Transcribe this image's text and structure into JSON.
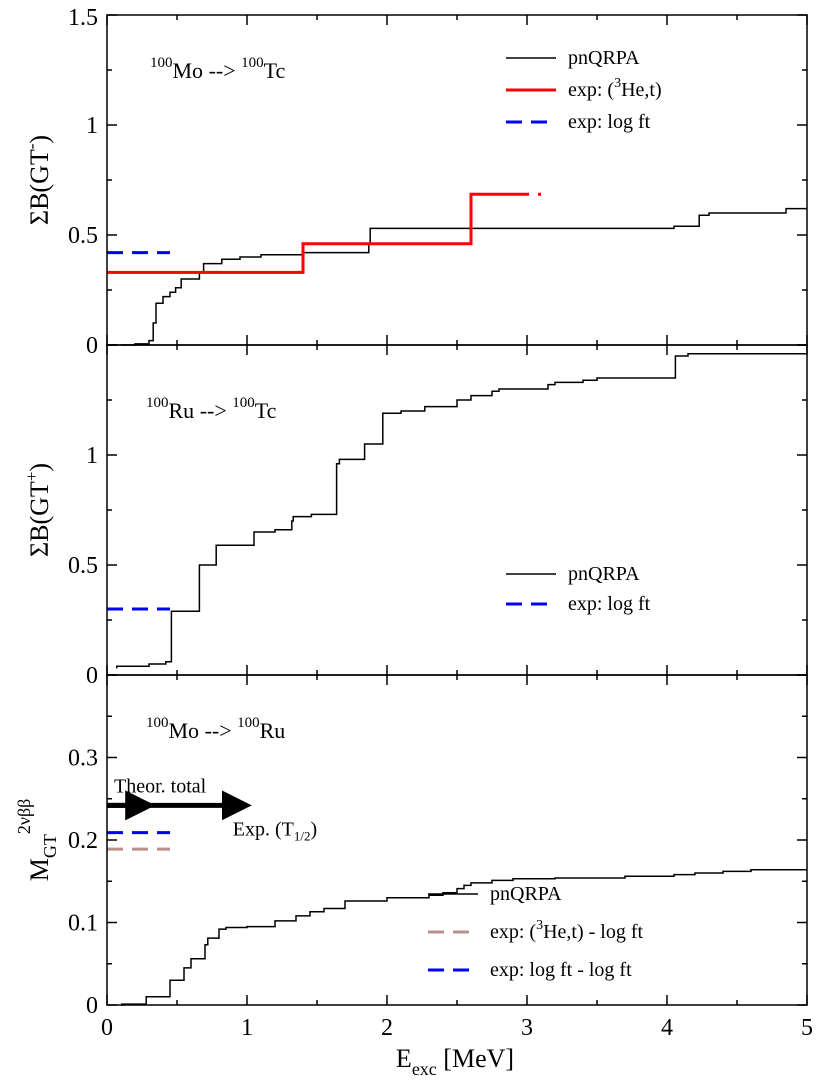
{
  "chart_data": {
    "type": "line",
    "xlim": [
      0,
      5
    ],
    "xticks": [
      "0",
      "1",
      "2",
      "3",
      "4",
      "5"
    ],
    "xlabel": {
      "main": "E",
      "sub": "exc",
      "rest": " [MeV]"
    },
    "panels": [
      {
        "id": "gt-minus",
        "ylim": [
          0,
          1.5
        ],
        "yticks": [
          "0",
          "0.5",
          "1",
          "1.5"
        ],
        "ylabel": {
          "main": "ΣB(GT",
          "sup": "-",
          "tail": ")"
        },
        "reaction": {
          "a_sup": "100",
          "a": "Mo",
          "arrow": " --> ",
          "b_sup": "100",
          "b": "Tc"
        },
        "legend": [
          {
            "name": "pnQRPA",
            "color": "#000000",
            "dash": "solid"
          },
          {
            "name_parts": [
              "exp: (",
              "3",
              "He,t)"
            ],
            "color": "#ff0000",
            "dash": "solid"
          },
          {
            "name": "exp: log ft",
            "color": "#0000ff",
            "dash": "dashed"
          }
        ],
        "series": [
          {
            "name": "pnQRPA",
            "color": "#000000",
            "width": 1.5,
            "dash": "solid",
            "points": [
              [
                0.1,
                0
              ],
              [
                0.2,
                0
              ],
              [
                0.2,
                0.005
              ],
              [
                0.3,
                0.005
              ],
              [
                0.3,
                0.02
              ],
              [
                0.33,
                0.02
              ],
              [
                0.33,
                0.1
              ],
              [
                0.35,
                0.1
              ],
              [
                0.35,
                0.19
              ],
              [
                0.4,
                0.19
              ],
              [
                0.4,
                0.22
              ],
              [
                0.45,
                0.22
              ],
              [
                0.45,
                0.24
              ],
              [
                0.49,
                0.24
              ],
              [
                0.49,
                0.26
              ],
              [
                0.53,
                0.26
              ],
              [
                0.53,
                0.3
              ],
              [
                0.66,
                0.3
              ],
              [
                0.66,
                0.33
              ],
              [
                0.69,
                0.33
              ],
              [
                0.69,
                0.37
              ],
              [
                0.82,
                0.37
              ],
              [
                0.82,
                0.39
              ],
              [
                0.95,
                0.39
              ],
              [
                0.95,
                0.4
              ],
              [
                1.1,
                0.4
              ],
              [
                1.1,
                0.41
              ],
              [
                1.4,
                0.41
              ],
              [
                1.4,
                0.42
              ],
              [
                1.87,
                0.42
              ],
              [
                1.87,
                0.46
              ],
              [
                1.88,
                0.46
              ],
              [
                1.88,
                0.53
              ],
              [
                4.05,
                0.53
              ],
              [
                4.05,
                0.54
              ],
              [
                4.23,
                0.54
              ],
              [
                4.23,
                0.59
              ],
              [
                4.3,
                0.59
              ],
              [
                4.3,
                0.6
              ],
              [
                4.85,
                0.6
              ],
              [
                4.85,
                0.62
              ],
              [
                5,
                0.62
              ]
            ]
          },
          {
            "name_parts": [
              "exp: (",
              "3",
              "He,t)"
            ],
            "color": "#ff0000",
            "width": 3,
            "dash": "solid",
            "points": [
              [
                0,
                0.33
              ],
              [
                1.4,
                0.33
              ],
              [
                1.4,
                0.46
              ],
              [
                2.6,
                0.46
              ],
              [
                2.6,
                0.685
              ],
              [
                2.9,
                0.685
              ]
            ]
          },
          {
            "name_parts": [
              "exp: (",
              "3",
              "He,t)"
            ],
            "color": "#ff0000",
            "width": 3,
            "dash": "dashed",
            "points": [
              [
                2.9,
                0.685
              ],
              [
                3.1,
                0.685
              ]
            ]
          },
          {
            "name": "exp: log ft",
            "color": "#0000ff",
            "width": 3,
            "dash": "dashed",
            "points": [
              [
                0,
                0.42
              ],
              [
                0.45,
                0.42
              ]
            ]
          }
        ]
      },
      {
        "id": "gt-plus",
        "ylim": [
          0,
          1.5
        ],
        "yticks": [
          "0",
          "0.5",
          "1"
        ],
        "ylabel": {
          "main": "ΣB(GT",
          "sup": "+",
          "tail": ")"
        },
        "reaction": {
          "a_sup": "100",
          "a": "Ru",
          "arrow": " --> ",
          "b_sup": "100",
          "b": "Tc"
        },
        "legend": [
          {
            "name": "pnQRPA",
            "color": "#000000",
            "dash": "solid"
          },
          {
            "name": "exp: log ft",
            "color": "#0000ff",
            "dash": "dashed"
          }
        ],
        "series": [
          {
            "name": "pnQRPA",
            "color": "#000000",
            "width": 1.5,
            "dash": "solid",
            "points": [
              [
                0.07,
                0.03
              ],
              [
                0.07,
                0.04
              ],
              [
                0.3,
                0.04
              ],
              [
                0.3,
                0.05
              ],
              [
                0.42,
                0.05
              ],
              [
                0.42,
                0.06
              ],
              [
                0.46,
                0.06
              ],
              [
                0.46,
                0.29
              ],
              [
                0.66,
                0.29
              ],
              [
                0.66,
                0.5
              ],
              [
                0.78,
                0.5
              ],
              [
                0.78,
                0.59
              ],
              [
                1.05,
                0.59
              ],
              [
                1.05,
                0.65
              ],
              [
                1.2,
                0.65
              ],
              [
                1.2,
                0.66
              ],
              [
                1.32,
                0.66
              ],
              [
                1.32,
                0.7
              ],
              [
                1.33,
                0.7
              ],
              [
                1.33,
                0.72
              ],
              [
                1.46,
                0.72
              ],
              [
                1.46,
                0.73
              ],
              [
                1.64,
                0.73
              ],
              [
                1.64,
                0.96
              ],
              [
                1.66,
                0.96
              ],
              [
                1.66,
                0.98
              ],
              [
                1.84,
                0.98
              ],
              [
                1.84,
                1.05
              ],
              [
                1.97,
                1.05
              ],
              [
                1.97,
                1.19
              ],
              [
                2.1,
                1.19
              ],
              [
                2.1,
                1.2
              ],
              [
                2.27,
                1.2
              ],
              [
                2.27,
                1.22
              ],
              [
                2.5,
                1.22
              ],
              [
                2.5,
                1.25
              ],
              [
                2.6,
                1.25
              ],
              [
                2.6,
                1.27
              ],
              [
                2.75,
                1.27
              ],
              [
                2.75,
                1.29
              ],
              [
                2.8,
                1.29
              ],
              [
                2.8,
                1.3
              ],
              [
                3.15,
                1.3
              ],
              [
                3.15,
                1.32
              ],
              [
                3.2,
                1.32
              ],
              [
                3.2,
                1.33
              ],
              [
                3.4,
                1.33
              ],
              [
                3.4,
                1.34
              ],
              [
                3.5,
                1.34
              ],
              [
                3.5,
                1.35
              ],
              [
                4.06,
                1.35
              ],
              [
                4.06,
                1.45
              ],
              [
                4.15,
                1.45
              ],
              [
                4.15,
                1.46
              ],
              [
                5,
                1.46
              ]
            ]
          },
          {
            "name": "exp: log ft",
            "color": "#0000ff",
            "width": 3,
            "dash": "dashed",
            "points": [
              [
                0,
                0.3
              ],
              [
                0.45,
                0.3
              ]
            ]
          }
        ]
      },
      {
        "id": "m-gt",
        "ylim": [
          0,
          0.4
        ],
        "yticks": [
          "0",
          "0.1",
          "0.2",
          "0.3"
        ],
        "ylabel": {
          "main": "M",
          "sub": "GT",
          "sup": "2νββ"
        },
        "reaction": {
          "a_sup": "100",
          "a": "Mo",
          "arrow": " --> ",
          "b_sup": "100",
          "b": "Ru"
        },
        "legend": [
          {
            "name": "pnQRPA",
            "color": "#000000",
            "dash": "solid"
          },
          {
            "name_parts": [
              "exp: (",
              "3",
              "He,t) - log ft"
            ],
            "color": "#bc8f8f",
            "dash": "dashed"
          },
          {
            "name": "exp: log ft - log ft",
            "color": "#0000ff",
            "dash": "dashed"
          }
        ],
        "series": [
          {
            "name": "pnQRPA",
            "color": "#000000",
            "width": 1.5,
            "dash": "solid",
            "points": [
              [
                0.1,
                0
              ],
              [
                0.12,
                0
              ],
              [
                0.12,
                0.001
              ],
              [
                0.1,
                0.001
              ],
              [
                0.28,
                0.001
              ],
              [
                0.28,
                0.01
              ],
              [
                0.45,
                0.01
              ],
              [
                0.45,
                0.03
              ],
              [
                0.55,
                0.03
              ],
              [
                0.55,
                0.045
              ],
              [
                0.6,
                0.045
              ],
              [
                0.6,
                0.056
              ],
              [
                0.7,
                0.056
              ],
              [
                0.7,
                0.073
              ],
              [
                0.72,
                0.073
              ],
              [
                0.72,
                0.081
              ],
              [
                0.8,
                0.081
              ],
              [
                0.8,
                0.092
              ],
              [
                0.85,
                0.092
              ],
              [
                0.85,
                0.094
              ],
              [
                1.0,
                0.094
              ],
              [
                1.0,
                0.095
              ],
              [
                1.2,
                0.095
              ],
              [
                1.2,
                0.102
              ],
              [
                1.35,
                0.102
              ],
              [
                1.35,
                0.108
              ],
              [
                1.45,
                0.108
              ],
              [
                1.45,
                0.113
              ],
              [
                1.55,
                0.113
              ],
              [
                1.55,
                0.117
              ],
              [
                1.7,
                0.117
              ],
              [
                1.7,
                0.126
              ],
              [
                2.0,
                0.126
              ],
              [
                2.0,
                0.13
              ],
              [
                2.3,
                0.13
              ],
              [
                2.3,
                0.133
              ],
              [
                2.4,
                0.133
              ],
              [
                2.4,
                0.136
              ],
              [
                2.5,
                0.136
              ],
              [
                2.5,
                0.141
              ],
              [
                2.55,
                0.141
              ],
              [
                2.55,
                0.145
              ],
              [
                2.6,
                0.145
              ],
              [
                2.6,
                0.148
              ],
              [
                2.75,
                0.148
              ],
              [
                2.75,
                0.151
              ],
              [
                2.9,
                0.151
              ],
              [
                2.9,
                0.153
              ],
              [
                3.2,
                0.153
              ],
              [
                3.2,
                0.154
              ],
              [
                3.7,
                0.154
              ],
              [
                3.7,
                0.156
              ],
              [
                4.05,
                0.156
              ],
              [
                4.05,
                0.158
              ],
              [
                4.2,
                0.158
              ],
              [
                4.2,
                0.16
              ],
              [
                4.4,
                0.16
              ],
              [
                4.4,
                0.162
              ],
              [
                4.6,
                0.162
              ],
              [
                4.6,
                0.164
              ],
              [
                5,
                0.164
              ]
            ]
          },
          {
            "name_parts": [
              "exp: (",
              "3",
              "He,t) - log ft"
            ],
            "color": "#bc8f8f",
            "width": 3,
            "dash": "dashed",
            "points": [
              [
                0,
                0.189
              ],
              [
                0.45,
                0.189
              ]
            ]
          },
          {
            "name": "exp: log ft - log ft",
            "color": "#0000ff",
            "width": 3,
            "dash": "dashed",
            "points": [
              [
                0,
                0.209
              ],
              [
                0.45,
                0.209
              ]
            ]
          }
        ],
        "arrows": [
          {
            "label": "Theor. total",
            "x_from": 0,
            "x_to": 0.33,
            "y": 0.242
          },
          {
            "label_parts": [
              "Exp. (T",
              "1/2",
              ")"
            ],
            "x_from": 0,
            "x_to": 1.02,
            "y": 0.242
          }
        ]
      }
    ]
  }
}
